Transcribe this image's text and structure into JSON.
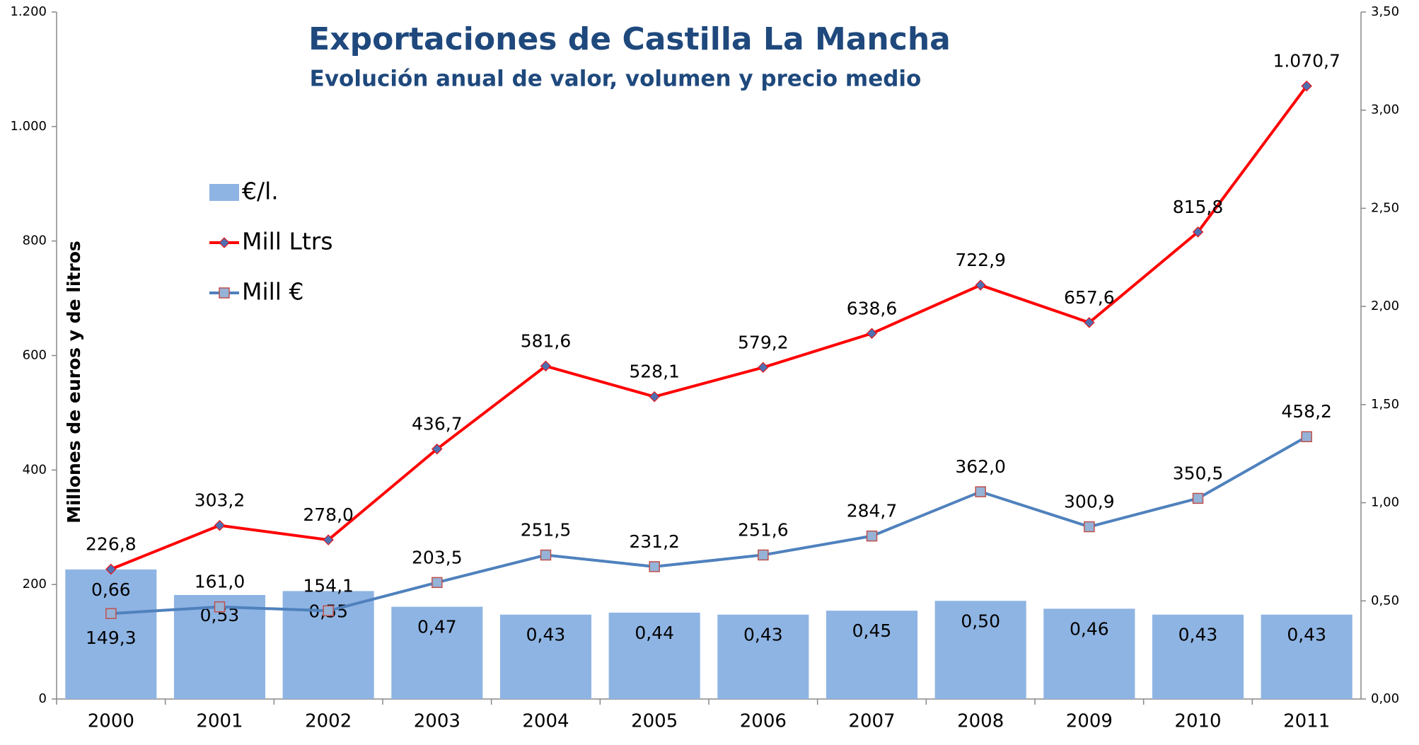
{
  "chart_data": {
    "type": "bar",
    "title": "Exportaciones de Castilla La Mancha",
    "subtitle": "Evolución anual de valor, volumen y precio medio",
    "y_label": "Millones de euros y de litros",
    "categories": [
      "2000",
      "2001",
      "2002",
      "2003",
      "2004",
      "2005",
      "2006",
      "2007",
      "2008",
      "2009",
      "2010",
      "2011"
    ],
    "series": [
      {
        "name": "€/l.",
        "type": "bar",
        "axis": "y2",
        "color": "#8eb4e3",
        "values": [
          0.66,
          0.53,
          0.55,
          0.47,
          0.43,
          0.44,
          0.43,
          0.45,
          0.5,
          0.46,
          0.43,
          0.43
        ],
        "value_labels": [
          "0,66",
          "0,53",
          "0,55",
          "0,47",
          "0,43",
          "0,44",
          "0,43",
          "0,45",
          "0,50",
          "0,46",
          "0,43",
          "0,43"
        ]
      },
      {
        "name": "Mill Ltrs",
        "type": "line",
        "color": "#ff0000",
        "marker": "diamond",
        "marker_color": "#4f6fb0",
        "values": [
          226.8,
          303.2,
          278.0,
          436.7,
          581.6,
          528.1,
          579.2,
          638.6,
          722.9,
          657.6,
          815.8,
          1070.7
        ],
        "value_labels": [
          "226,8",
          "303,2",
          "278,0",
          "436,7",
          "581,6",
          "528,1",
          "579,2",
          "638,6",
          "722,9",
          "657,6",
          "815,8",
          "1.070,7"
        ]
      },
      {
        "name": "Mill €",
        "type": "line",
        "color": "#4f81bd",
        "marker": "square",
        "marker_color": "#95b3d7",
        "values": [
          149.3,
          161.0,
          154.1,
          203.5,
          251.5,
          231.2,
          251.6,
          284.7,
          362.0,
          300.9,
          350.5,
          458.2
        ],
        "value_labels": [
          "149,3",
          "161,0",
          "154,1",
          "203,5",
          "251,5",
          "231,2",
          "251,6",
          "284,7",
          "362,0",
          "300,9",
          "350,5",
          "458,2"
        ]
      }
    ],
    "ylim": [
      0,
      1200
    ],
    "yticks": [
      0,
      200,
      400,
      600,
      800,
      {
        "value": 1000,
        "label": "1.000"
      },
      {
        "value": 1200,
        "label": "1.200"
      }
    ],
    "y2lim": [
      0,
      3.5
    ],
    "y2ticks": [
      {
        "value": 0,
        "label": "0,00"
      },
      {
        "value": 0.5,
        "label": "0,50"
      },
      {
        "value": 1,
        "label": "1,00"
      },
      {
        "value": 1.5,
        "label": "1,50"
      },
      {
        "value": 2,
        "label": "2,00"
      },
      {
        "value": 2.5,
        "label": "2,50"
      },
      {
        "value": 3,
        "label": "3,00"
      },
      {
        "value": 3.5,
        "label": "3,50"
      }
    ],
    "grid": false,
    "legend": "left"
  }
}
